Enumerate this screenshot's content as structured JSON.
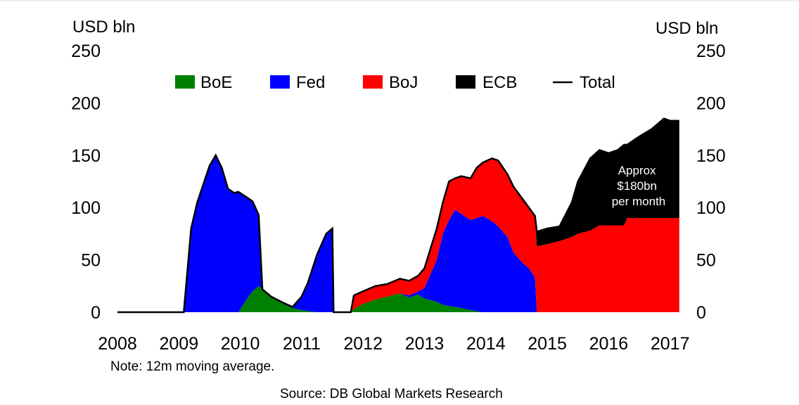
{
  "chart_data": {
    "type": "area",
    "stacked": true,
    "title": "",
    "ylabel_left": "USD bln",
    "ylabel_right": "USD bln",
    "ylim": [
      0,
      250
    ],
    "yticks": [
      0,
      50,
      100,
      150,
      200,
      250
    ],
    "xlim": [
      2008,
      2017.15
    ],
    "xticks": [
      "2008",
      "2009",
      "2010",
      "2011",
      "2012",
      "2013",
      "2014",
      "2015",
      "2016",
      "2017"
    ],
    "grid": false,
    "legend_position": "top",
    "legend": [
      "BoE",
      "Fed",
      "BoJ",
      "ECB",
      "Total"
    ],
    "colors": {
      "BoE": "#008000",
      "Fed": "#0000ff",
      "BoJ": "#ff0000",
      "ECB": "#000000",
      "Total": "#000000"
    },
    "x": [
      2008.0,
      2009.08,
      2009.2,
      2009.3,
      2009.5,
      2009.6,
      2009.7,
      2009.8,
      2009.9,
      2009.97,
      2010.1,
      2010.2,
      2010.3,
      2010.36,
      2010.5,
      2010.7,
      2010.85,
      2011.0,
      2011.1,
      2011.25,
      2011.4,
      2011.5,
      2011.52,
      2011.8,
      2011.85,
      2012.0,
      2012.2,
      2012.4,
      2012.6,
      2012.75,
      2012.9,
      2013.0,
      2013.2,
      2013.3,
      2013.4,
      2013.5,
      2013.6,
      2013.75,
      2013.85,
      2013.95,
      2014.1,
      2014.2,
      2014.35,
      2014.45,
      2014.6,
      2014.7,
      2014.8,
      2014.83,
      2015.0,
      2015.2,
      2015.4,
      2015.5,
      2015.7,
      2015.85,
      2016.0,
      2016.15,
      2016.25,
      2016.3,
      2016.5,
      2016.7,
      2016.9,
      2017.0,
      2017.15
    ],
    "series": [
      {
        "name": "BoE",
        "values": [
          0,
          0,
          0,
          0,
          0,
          0,
          0,
          0,
          0,
          0,
          12,
          20,
          25,
          22,
          14,
          8,
          4,
          2,
          1,
          0,
          0,
          0,
          0,
          0,
          3,
          8,
          12,
          15,
          18,
          14,
          17,
          13,
          10,
          7,
          6,
          5,
          4,
          2,
          1,
          0,
          0,
          0,
          0,
          0,
          0,
          0,
          0,
          0,
          0,
          0,
          0,
          0,
          0,
          0,
          0,
          0,
          0,
          0,
          0,
          0,
          0,
          0,
          0
        ]
      },
      {
        "name": "Fed",
        "values": [
          0,
          0,
          80,
          105,
          140,
          150,
          138,
          118,
          114,
          115,
          98,
          86,
          68,
          0,
          1,
          1,
          1,
          13,
          27,
          55,
          75,
          80,
          0,
          0,
          0,
          0,
          0,
          0,
          0,
          2,
          3,
          10,
          40,
          68,
          82,
          93,
          90,
          86,
          89,
          92,
          87,
          82,
          72,
          57,
          47,
          42,
          33,
          0,
          0,
          0,
          0,
          0,
          0,
          0,
          0,
          0,
          0,
          0,
          0,
          0,
          0,
          0,
          0
        ]
      },
      {
        "name": "BoJ",
        "values": [
          0,
          0,
          0,
          0,
          0,
          0,
          0,
          0,
          0,
          0,
          0,
          0,
          0,
          0,
          0,
          0,
          0,
          0,
          0,
          0,
          0,
          0,
          0,
          0,
          13,
          12,
          13,
          12,
          14,
          14,
          15,
          19,
          30,
          30,
          37,
          30,
          36,
          40,
          48,
          51,
          60,
          63,
          60,
          63,
          61,
          58,
          59,
          63,
          65,
          68,
          72,
          75,
          78,
          83,
          83,
          83,
          83,
          90,
          90,
          90,
          90,
          90,
          90
        ]
      },
      {
        "name": "ECB",
        "values": [
          0,
          0,
          0,
          0,
          0,
          0,
          0,
          0,
          0,
          0,
          0,
          0,
          0,
          0,
          0,
          0,
          0,
          0,
          0,
          0,
          0,
          0,
          0,
          0,
          0,
          0,
          0,
          0,
          0,
          0,
          0,
          0,
          0,
          0,
          0,
          0,
          0,
          0,
          0,
          0,
          0,
          0,
          0,
          0,
          0,
          0,
          0,
          14,
          15,
          14,
          33,
          50,
          69,
          72,
          69,
          72,
          77,
          70,
          78,
          85,
          95,
          93,
          93
        ]
      }
    ],
    "annotation": "Approx $180bn per month",
    "note": "Note: 12m moving average.",
    "source": "Source: DB Global Markets Research"
  }
}
